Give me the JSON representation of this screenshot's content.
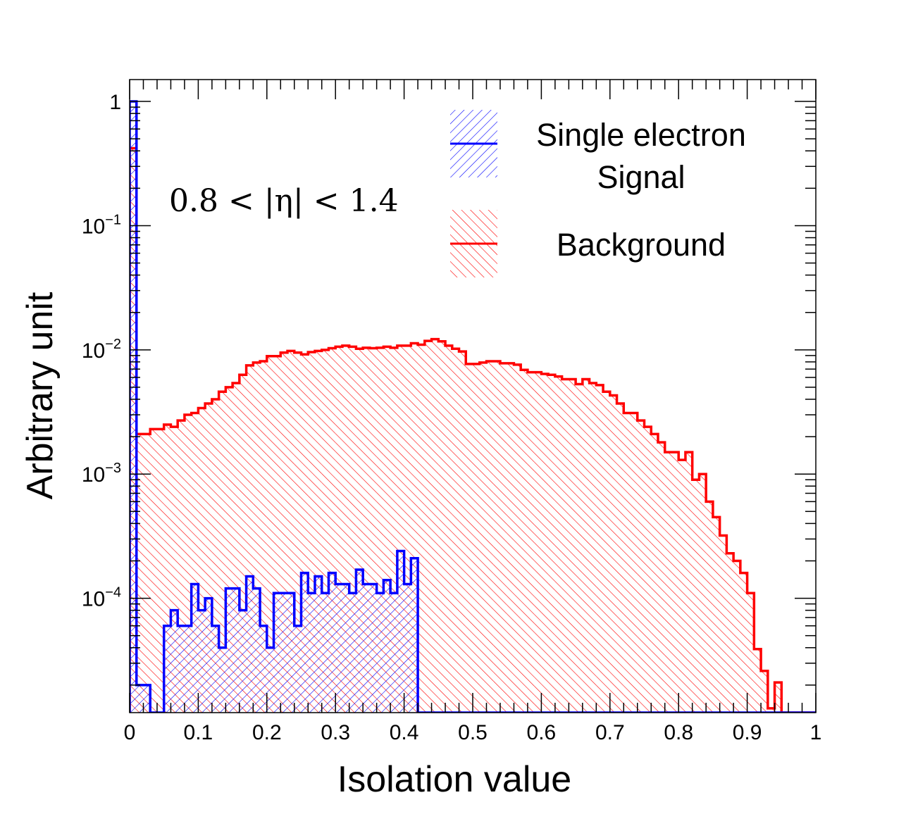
{
  "chart_data": {
    "type": "histogram",
    "xlabel": "Isolation value",
    "ylabel": "Arbitrary unit",
    "xlim": [
      0,
      1
    ],
    "ylim": [
      1.2e-05,
      1.5
    ],
    "y_log_scale": true,
    "x_ticks": [
      "0",
      "0.1",
      "0.2",
      "0.3",
      "0.4",
      "0.5",
      "0.6",
      "0.7",
      "0.8",
      "0.9",
      "1"
    ],
    "y_ticks": [
      {
        "value": 1,
        "base": "1",
        "exp": ""
      },
      {
        "value": 0.1,
        "base": "10",
        "exp": "−1"
      },
      {
        "value": 0.01,
        "base": "10",
        "exp": "−2"
      },
      {
        "value": 0.001,
        "base": "10",
        "exp": "−3"
      },
      {
        "value": 0.0001,
        "base": "10",
        "exp": "−4"
      }
    ],
    "annotation": "0.8 < |η| < 1.4",
    "legend_position": "top-right",
    "bin_width": 0.01,
    "series": [
      {
        "name": "Background",
        "color": "#ff0000",
        "hatch": "diagonal",
        "values": [
          0.42,
          0.0021,
          0.0021,
          0.0023,
          0.0023,
          0.0025,
          0.0024,
          0.0027,
          0.003,
          0.0031,
          0.0034,
          0.0037,
          0.004,
          0.0046,
          0.005,
          0.0054,
          0.0063,
          0.0075,
          0.0079,
          0.0081,
          0.0089,
          0.0089,
          0.0095,
          0.0098,
          0.0095,
          0.0092,
          0.0096,
          0.0098,
          0.01,
          0.0103,
          0.0106,
          0.0108,
          0.0106,
          0.0102,
          0.0104,
          0.0103,
          0.0104,
          0.0106,
          0.0104,
          0.0108,
          0.0108,
          0.0113,
          0.011,
          0.0118,
          0.0122,
          0.0117,
          0.0108,
          0.0102,
          0.0097,
          0.0077,
          0.0077,
          0.0079,
          0.0081,
          0.0081,
          0.0078,
          0.0078,
          0.0076,
          0.0069,
          0.0066,
          0.0066,
          0.0064,
          0.0063,
          0.0061,
          0.0058,
          0.0058,
          0.0053,
          0.0058,
          0.0054,
          0.0052,
          0.0046,
          0.0043,
          0.0037,
          0.0031,
          0.0031,
          0.0027,
          0.0024,
          0.0021,
          0.0018,
          0.0015,
          0.0015,
          0.0013,
          0.0015,
          0.0009,
          0.001,
          0.0006,
          0.00045,
          0.00032,
          0.00023,
          0.0002,
          0.00016,
          0.00011,
          3.9e-05,
          2.6e-05,
          1.3e-05,
          2.1e-05,
          0,
          0,
          0,
          0,
          0
        ]
      },
      {
        "name": "Single electron Signal",
        "color": "#0000ff",
        "hatch": "diagonal",
        "values": [
          1.0,
          2e-05,
          2e-05,
          0,
          0,
          6e-05,
          8e-05,
          6e-05,
          6e-05,
          0.00013,
          8e-05,
          0.0001,
          6e-05,
          4e-05,
          0.00012,
          0.00012,
          8e-05,
          0.00015,
          0.00012,
          6e-05,
          4e-05,
          0.00011,
          0.00011,
          0.00011,
          6e-05,
          0.00016,
          0.00011,
          0.00015,
          0.00011,
          0.00016,
          0.00013,
          0.00013,
          0.00011,
          0.00017,
          0.00013,
          0.00013,
          0.00011,
          0.00014,
          0.00011,
          0.00024,
          0.00013,
          0.00021,
          0,
          0,
          0,
          0,
          0,
          0,
          0,
          0,
          0,
          0,
          0,
          0,
          0,
          0,
          0,
          0,
          0,
          0,
          0,
          0,
          0,
          0,
          0,
          0,
          0,
          0,
          0,
          0,
          0,
          0,
          0,
          0,
          0,
          0,
          0,
          0,
          0,
          0,
          0,
          0,
          0,
          0,
          0,
          0,
          0,
          0,
          0,
          0,
          0,
          0,
          0,
          0,
          0,
          0,
          0,
          0,
          0,
          0
        ]
      }
    ]
  },
  "legend": {
    "signal_line1": "Single electron",
    "signal_line2": "Signal",
    "background": "Background"
  }
}
